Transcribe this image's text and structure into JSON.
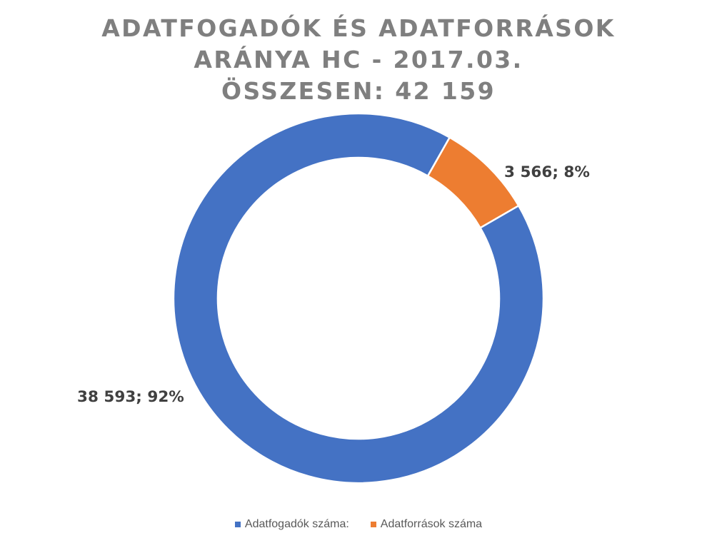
{
  "chart_data": {
    "type": "pie",
    "variant": "donut",
    "title_lines": [
      "ADATFOGADÓK ÉS ADATFORRÁSOK",
      "ARÁNYA HC - 2017.03.",
      "ÖSSZESEN: 42 159"
    ],
    "slices": [
      {
        "name": "Adatforrások száma",
        "value": 3566,
        "percent": 8,
        "label": "3 566; 8%",
        "color": "#ED7D31"
      },
      {
        "name": "Adatfogadók száma:",
        "value": 38593,
        "percent": 92,
        "label": "38 593; 92%",
        "color": "#4472C4"
      }
    ],
    "legend": {
      "position": "bottom",
      "items": [
        {
          "label": "Adatfogadók száma:",
          "color": "#4472C4"
        },
        {
          "label": "Adatforrások száma",
          "color": "#ED7D31"
        }
      ]
    }
  }
}
